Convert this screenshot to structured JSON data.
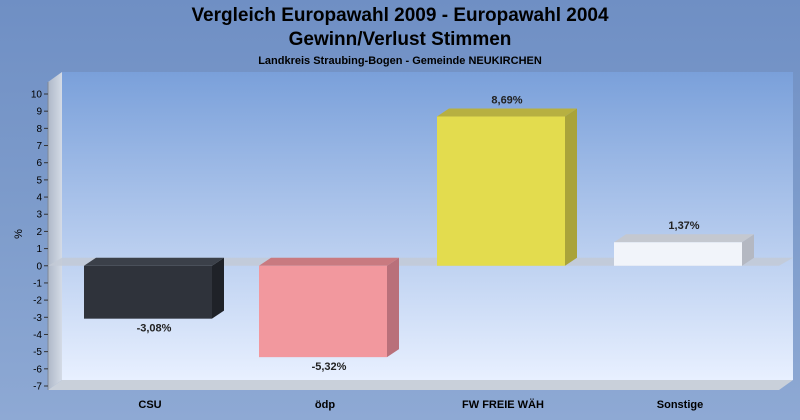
{
  "chart_data": {
    "type": "bar",
    "title": "Vergleich Europawahl 2009 - Europawahl 2004",
    "title2": "Gewinn/Verlust Stimmen",
    "subtitle": "Landkreis Straubing-Bogen - Gemeinde NEUKIRCHEN",
    "ylabel": "%",
    "ylim": [
      -7,
      10
    ],
    "yticks": [
      10,
      9,
      8,
      7,
      6,
      5,
      4,
      3,
      2,
      1,
      0,
      -1,
      -2,
      -3,
      -4,
      -5,
      -6,
      -7
    ],
    "categories": [
      "CSU",
      "ödp",
      "FW FREIE WÄH",
      "Sonstige"
    ],
    "values": [
      -3.08,
      -5.32,
      8.69,
      1.37
    ],
    "value_labels": [
      "-3,08%",
      "-5,32%",
      "8,69%",
      "1,37%"
    ],
    "colors": [
      "#2f333b",
      "#f2989e",
      "#e3dc4e",
      "#f1f4fa"
    ],
    "side_colors": [
      "#1f2228",
      "#b9707a",
      "#a9a33a",
      "#b4b8c2"
    ],
    "top_colors": [
      "#3b4049",
      "#c97a80",
      "#b7b041",
      "#c4c8d0"
    ],
    "grid": false,
    "legend": "none"
  }
}
